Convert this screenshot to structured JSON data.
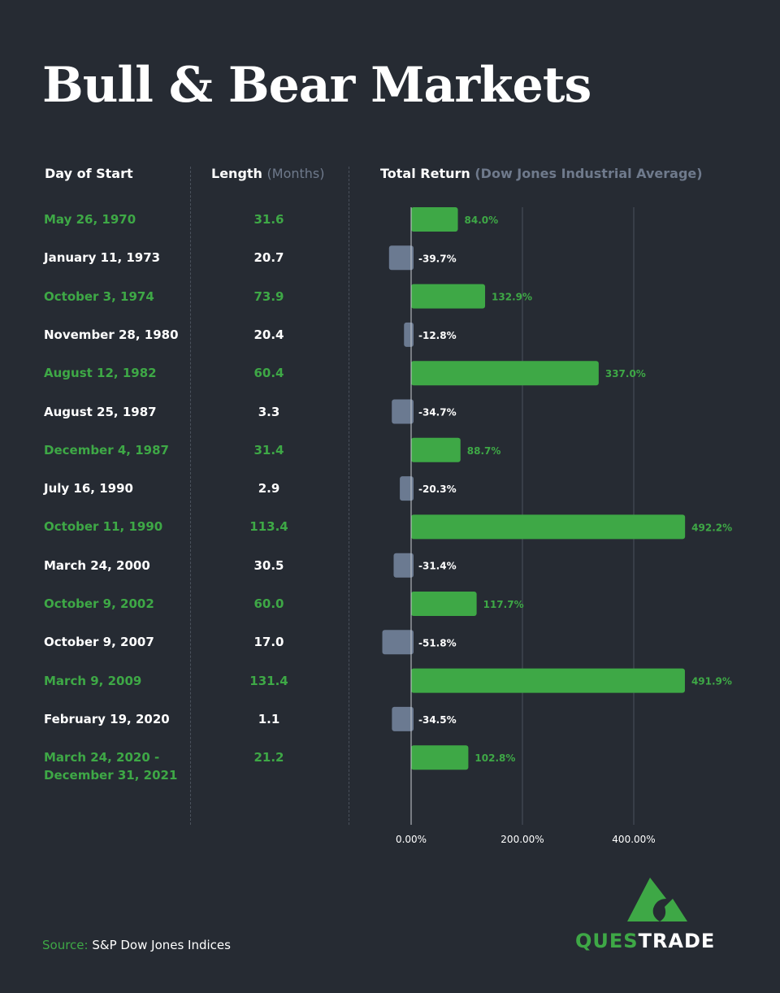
{
  "title": "Bull & Bear Markets",
  "headers": {
    "start": "Day of Start",
    "length": "Length",
    "length_unit": "(Months)",
    "return": "Total Return",
    "return_sub": "(Dow Jones Industrial Average)"
  },
  "colors": {
    "background": "#262b33",
    "bull": "#3ea846",
    "bear": "#6b7a91"
  },
  "chart_data": {
    "type": "bar",
    "orientation": "horizontal",
    "categories": [
      "May 26, 1970",
      "January 11, 1973",
      "October 3, 1974",
      "November 28, 1980",
      "August 12, 1982",
      "August 25, 1987",
      "December 4, 1987",
      "July 16, 1990",
      "October 11, 1990",
      "March 24, 2000",
      "October 9, 2002",
      "October 9, 2007",
      "March 9, 2009",
      "February 19, 2020",
      "March 24, 2020 - December 31, 2021"
    ],
    "category_lines": [
      [
        "May 26, 1970"
      ],
      [
        "January 11, 1973"
      ],
      [
        "October 3, 1974"
      ],
      [
        "November 28, 1980"
      ],
      [
        "August 12, 1982"
      ],
      [
        "August 25, 1987"
      ],
      [
        "December 4, 1987"
      ],
      [
        "July 16, 1990"
      ],
      [
        "October 11, 1990"
      ],
      [
        "March 24, 2000"
      ],
      [
        "October 9, 2002"
      ],
      [
        "October 9, 2007"
      ],
      [
        "March 9, 2009"
      ],
      [
        "February 19, 2020"
      ],
      [
        "March 24, 2020 -",
        "December 31, 2021"
      ]
    ],
    "lengths": [
      "31.6",
      "20.7",
      "73.9",
      "20.4",
      "60.4",
      "3.3",
      "31.4",
      "2.9",
      "113.4",
      "30.5",
      "60.0",
      "17.0",
      "131.4",
      "1.1",
      "21.2"
    ],
    "values": [
      84.0,
      -39.7,
      132.9,
      -12.8,
      337.0,
      -34.7,
      88.7,
      -20.3,
      492.2,
      -31.4,
      117.7,
      -51.8,
      491.9,
      -34.5,
      102.8
    ],
    "labels": [
      "84.0%",
      "-39.7%",
      "132.9%",
      "-12.8%",
      "337.0%",
      "-34.7%",
      "88.7%",
      "-20.3%",
      "492.2%",
      "-31.4%",
      "117.7%",
      "-51.8%",
      "491.9%",
      "-34.5%",
      "102.8%"
    ],
    "x_ticks": [
      0,
      200,
      400
    ],
    "x_tick_labels": [
      "0.00%",
      "200.00%",
      "400.00%"
    ],
    "grid": true
  },
  "footer": {
    "source_label": "Source:",
    "source_text": " S&P Dow Jones Indices"
  },
  "logo": {
    "part1": "QUES",
    "part2": "TRADE"
  }
}
